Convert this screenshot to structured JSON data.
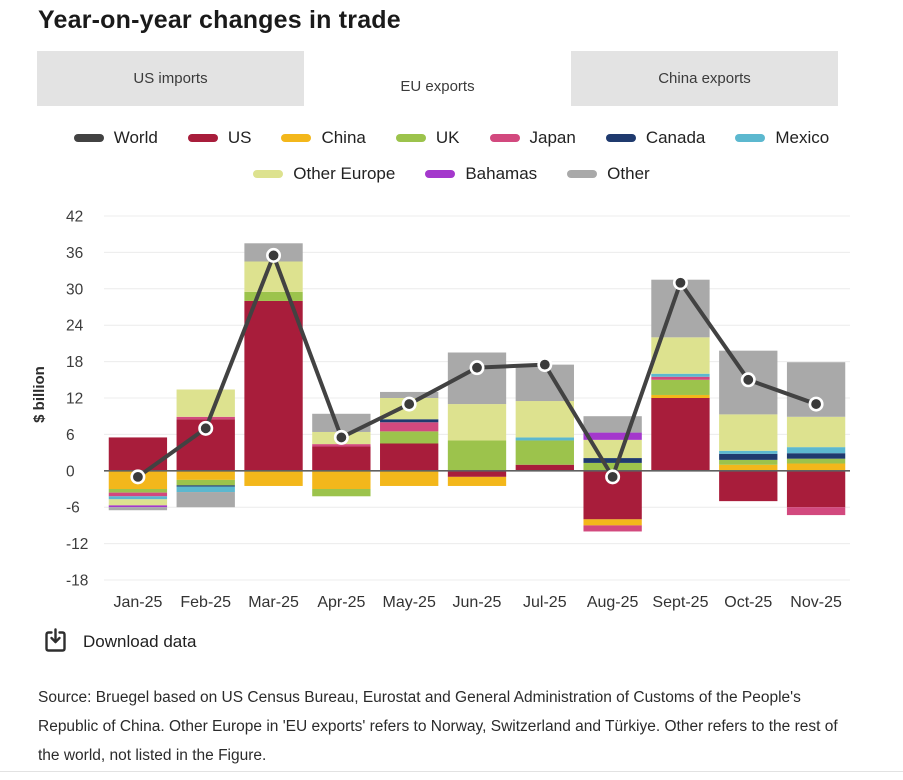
{
  "header": {
    "title": "Year-on-year changes in trade"
  },
  "tabs": [
    {
      "label": "US imports",
      "active": false
    },
    {
      "label": "EU exports",
      "active": true
    },
    {
      "label": "China exports",
      "active": false
    }
  ],
  "chart_data": {
    "type": "bar",
    "subtype": "stacked-bars-with-line-overlay",
    "title": "Year-on-year changes in trade",
    "xlabel": "",
    "ylabel": "$ billion",
    "ylim": [
      -18,
      42
    ],
    "ytick_step": 6,
    "grid": "horizontal",
    "legend_position": "top-center",
    "legend_rows": [
      7,
      3
    ],
    "categories": [
      "Jan-25",
      "Feb-25",
      "Mar-25",
      "Apr-25",
      "May-25",
      "Jun-25",
      "Jul-25",
      "Aug-25",
      "Sept-25",
      "Oct-25",
      "Nov-25"
    ],
    "line_series": {
      "name": "World",
      "color": "#424242",
      "values": [
        -1,
        7,
        35.5,
        5.5,
        11,
        17,
        17.5,
        -1,
        31,
        15,
        11
      ]
    },
    "series": [
      {
        "name": "US",
        "color": "#a81d3b",
        "values": [
          5.5,
          8.5,
          28,
          4,
          4.5,
          -1,
          1,
          -8,
          12,
          -5,
          -6
        ]
      },
      {
        "name": "China",
        "color": "#f3b71b",
        "values": [
          -3,
          -1.5,
          -2.5,
          -3,
          -2.5,
          -1.5,
          0,
          -1,
          0.5,
          1,
          1.2
        ]
      },
      {
        "name": "UK",
        "color": "#9cc34c",
        "values": [
          -0.6,
          -0.9,
          1.5,
          -1.2,
          2,
          5,
          4,
          1.3,
          2.5,
          0.8,
          0.8
        ]
      },
      {
        "name": "Japan",
        "color": "#d2497e",
        "values": [
          -0.6,
          0.4,
          0,
          0.4,
          1.5,
          0,
          0,
          -1,
          0.5,
          0,
          -1.3
        ]
      },
      {
        "name": "Canada",
        "color": "#1f3a6e",
        "values": [
          0,
          -0.2,
          0,
          0,
          0.5,
          0,
          0,
          0.8,
          0,
          1,
          0.9
        ]
      },
      {
        "name": "Mexico",
        "color": "#5cb8cf",
        "values": [
          -0.5,
          -0.9,
          0,
          0,
          0,
          0,
          0.5,
          0,
          0.5,
          0.5,
          1
        ]
      },
      {
        "name": "Other Europe",
        "color": "#dde28f",
        "values": [
          -1,
          4.5,
          5,
          2,
          3.5,
          6,
          6,
          3,
          6,
          6,
          5
        ]
      },
      {
        "name": "Bahamas",
        "color": "#a438cc",
        "values": [
          -0.3,
          0,
          0,
          0,
          0,
          0,
          0,
          1.2,
          0,
          0,
          0
        ]
      },
      {
        "name": "Other",
        "color": "#a9a9a9",
        "values": [
          -0.5,
          -2.5,
          3,
          3,
          1,
          8.5,
          6,
          2.7,
          9.5,
          10.5,
          9
        ]
      }
    ],
    "colors": {
      "gridline": "#ececec",
      "zero_line": "#606060",
      "axis_text": "#3c3c3c",
      "marker_fill": "#3b3b3b",
      "marker_ring": "#ffffff"
    }
  },
  "footer": {
    "download_label": "Download data",
    "source_text": "Source: Bruegel based on US Census Bureau, Eurostat and General Administration of Customs of the People's Republic of China. Other Europe in 'EU exports' refers to Norway, Switzerland and Türkiye. Other refers to the rest of the world, not listed in the Figure."
  }
}
